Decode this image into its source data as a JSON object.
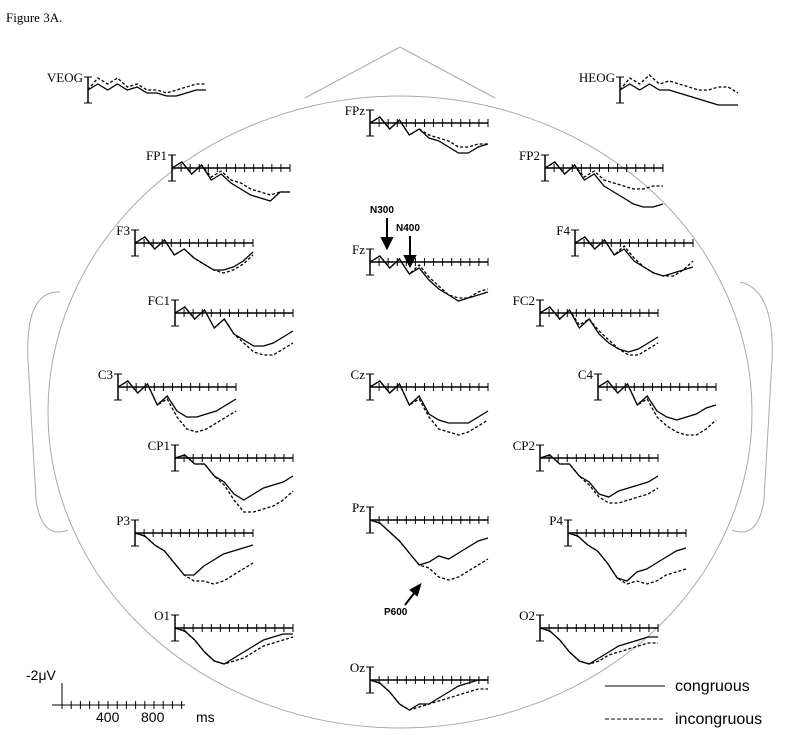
{
  "figure_label": "Figure 3A.",
  "times": [
    0,
    100,
    200,
    300,
    400,
    500,
    600,
    700,
    800,
    900,
    1000,
    1100,
    1200
  ],
  "legend": [
    "congruous",
    "incongruous"
  ],
  "annotations": {
    "n300": "N300",
    "n400": "N400",
    "p600": "P600"
  },
  "scale": {
    "amplitude": "-2μV",
    "ticks": [
      "400",
      "800"
    ],
    "unit": "ms"
  },
  "panels": [
    {
      "label": "VEOG",
      "congruous": [
        0,
        -1,
        0,
        -1,
        0,
        -0.5,
        0.5,
        0.5,
        1,
        1,
        0.5,
        0,
        0
      ],
      "incongruous": [
        0,
        -2,
        -1,
        -2,
        -0.5,
        -1,
        0,
        0,
        0.5,
        0,
        -0.5,
        -1,
        -1
      ]
    },
    {
      "label": "HEOG",
      "congruous": [
        0,
        -1,
        0,
        -1,
        0,
        0,
        0.5,
        1,
        1.5,
        2,
        2.5,
        2.5,
        2.5
      ],
      "incongruous": [
        0,
        -2,
        -1,
        -2.5,
        -1,
        -1.5,
        -1,
        -0.5,
        0,
        0,
        -0.5,
        -0.5,
        0.5
      ]
    },
    {
      "label": "FPz",
      "congruous": [
        0,
        -1,
        1,
        -0.5,
        2,
        1,
        2.5,
        3,
        4,
        5,
        5,
        4,
        3.5
      ],
      "incongruous": [
        0,
        -1,
        1,
        -0.5,
        2,
        1,
        2,
        2.5,
        3,
        4,
        4,
        3.5,
        3.5
      ]
    },
    {
      "label": "FP1",
      "congruous": [
        0,
        -1,
        1,
        -0.5,
        2,
        1,
        2.5,
        3.5,
        4.5,
        5,
        5.5,
        4,
        4
      ],
      "incongruous": [
        0,
        -1,
        1,
        -0.5,
        1.5,
        0.5,
        2,
        2.5,
        3.5,
        4,
        4.5,
        4,
        4
      ]
    },
    {
      "label": "FP2",
      "congruous": [
        0,
        -1,
        1,
        -0.5,
        2,
        1,
        3,
        4,
        5,
        6,
        6.5,
        6.5,
        6
      ],
      "incongruous": [
        0,
        -1,
        1,
        -0.5,
        1.5,
        0.5,
        2,
        2.5,
        3,
        3.5,
        3.5,
        3,
        3
      ]
    },
    {
      "label": "F3",
      "congruous": [
        0,
        -1,
        1,
        -0.5,
        2,
        1,
        2.5,
        3.5,
        4.5,
        4.5,
        4,
        3,
        1.5
      ],
      "incongruous": [
        0,
        -1,
        1,
        -0.5,
        2,
        1,
        2.5,
        3.5,
        4.5,
        5,
        4.5,
        3.5,
        2
      ]
    },
    {
      "label": "Fz",
      "congruous": [
        0,
        -1,
        1,
        -0.5,
        2,
        1,
        3,
        4.5,
        5.5,
        6.5,
        6,
        5.5,
        5
      ],
      "incongruous": [
        0,
        -1,
        1,
        -0.5,
        2,
        0.5,
        2.5,
        4,
        5.5,
        6,
        6,
        5,
        4.5
      ]
    },
    {
      "label": "F4",
      "congruous": [
        0,
        -1,
        1,
        -0.5,
        2,
        1,
        3,
        4,
        5,
        5.5,
        5,
        4.5,
        4
      ],
      "incongruous": [
        0,
        -1,
        1,
        -0.5,
        2,
        0.5,
        2.5,
        4,
        5,
        5.5,
        5.5,
        4.5,
        3
      ]
    },
    {
      "label": "FC1",
      "congruous": [
        0,
        -1,
        1,
        -0.5,
        2.5,
        1,
        3.5,
        4.5,
        5.5,
        5.5,
        5,
        4,
        3
      ],
      "incongruous": [
        0,
        -1,
        1,
        -0.5,
        2.5,
        1,
        3.5,
        5,
        6.5,
        7,
        7,
        6,
        5
      ]
    },
    {
      "label": "FC2",
      "congruous": [
        0,
        -1,
        1,
        -0.5,
        2.5,
        1,
        3.5,
        5,
        6,
        6.5,
        6,
        5,
        4
      ],
      "incongruous": [
        0,
        -1,
        1,
        -0.5,
        2,
        1,
        3,
        4.5,
        6,
        7,
        7,
        6,
        5
      ]
    },
    {
      "label": "C3",
      "congruous": [
        0,
        -1,
        1,
        -0.5,
        3,
        1.5,
        4,
        5,
        5,
        4.5,
        4,
        3,
        2
      ],
      "incongruous": [
        0,
        -1,
        1,
        -0.5,
        3,
        2,
        5,
        7,
        7.5,
        7,
        6,
        5,
        4
      ]
    },
    {
      "label": "Cz",
      "congruous": [
        0,
        -1,
        1,
        -0.5,
        3,
        1.5,
        4.5,
        5.5,
        6,
        6,
        6,
        5,
        4
      ],
      "incongruous": [
        0,
        -1,
        1,
        -0.5,
        3,
        2,
        5,
        7,
        7.5,
        8,
        7.5,
        6.5,
        5.5
      ]
    },
    {
      "label": "C4",
      "congruous": [
        0,
        -1,
        1,
        -0.5,
        3,
        1.5,
        4,
        5,
        5.5,
        5,
        4.5,
        3.5,
        3
      ],
      "incongruous": [
        0,
        -1,
        1,
        -0.5,
        3,
        2,
        5,
        6.5,
        7.5,
        8,
        8,
        7,
        5.5
      ]
    },
    {
      "label": "CP1",
      "congruous": [
        0,
        -0.5,
        1,
        1,
        3,
        4,
        6,
        7,
        6,
        5,
        4.5,
        4,
        3
      ],
      "incongruous": [
        0,
        -0.5,
        1,
        1,
        3,
        4.5,
        7,
        9,
        9,
        8.5,
        8,
        7,
        5.5
      ]
    },
    {
      "label": "CP2",
      "congruous": [
        0,
        -0.5,
        1,
        1,
        3,
        4,
        6,
        6.5,
        5.5,
        5,
        4.5,
        4,
        3
      ],
      "incongruous": [
        0,
        -0.5,
        1,
        1,
        3,
        4.5,
        6.5,
        7.5,
        7.5,
        7,
        6.5,
        6,
        5
      ]
    },
    {
      "label": "P3",
      "congruous": [
        0,
        0.5,
        2,
        3,
        5,
        7,
        7,
        5.5,
        4.5,
        3.5,
        3,
        2.5,
        2
      ],
      "incongruous": [
        0,
        0.5,
        2,
        3,
        5,
        7,
        8,
        8,
        8.5,
        8,
        7,
        6,
        5
      ]
    },
    {
      "label": "Pz",
      "congruous": [
        0,
        0.5,
        2,
        3.5,
        5.5,
        7.5,
        7,
        6,
        6.5,
        5.5,
        4.5,
        3.5,
        3
      ],
      "incongruous": [
        0,
        0.5,
        2,
        3.5,
        5.5,
        7.5,
        8,
        9.5,
        10,
        9.5,
        8.5,
        7.5,
        6.5
      ]
    },
    {
      "label": "P4",
      "congruous": [
        0,
        0.5,
        2,
        3,
        5,
        7.5,
        8,
        6.5,
        6,
        5,
        4,
        3,
        2.5
      ],
      "incongruous": [
        0,
        0.5,
        2,
        3,
        5,
        7.5,
        8.5,
        8,
        8.5,
        8,
        7,
        6.5,
        6
      ]
    },
    {
      "label": "O1",
      "congruous": [
        0,
        0.5,
        2,
        4,
        5.5,
        6,
        5,
        4,
        3,
        2,
        1.5,
        1,
        1
      ],
      "incongruous": [
        0,
        0.5,
        2,
        4,
        5.5,
        6,
        5.5,
        5,
        4,
        3,
        2.5,
        2,
        1.5
      ]
    },
    {
      "label": "O2",
      "congruous": [
        0,
        0.5,
        2,
        4,
        5.5,
        6,
        5,
        4,
        3,
        2.5,
        2,
        1.5,
        1.5
      ],
      "incongruous": [
        0,
        0.5,
        2,
        4,
        5.5,
        6,
        5.5,
        4.5,
        4,
        3.5,
        3,
        2.5,
        2.5
      ]
    },
    {
      "label": "Oz",
      "congruous": [
        0,
        0.5,
        2,
        4,
        5,
        4,
        4,
        3,
        2,
        1,
        0.5,
        0,
        0
      ],
      "incongruous": [
        0,
        0.5,
        2,
        4,
        5,
        4.5,
        4,
        3.5,
        3,
        2.5,
        2,
        1.5,
        1.5
      ]
    }
  ]
}
